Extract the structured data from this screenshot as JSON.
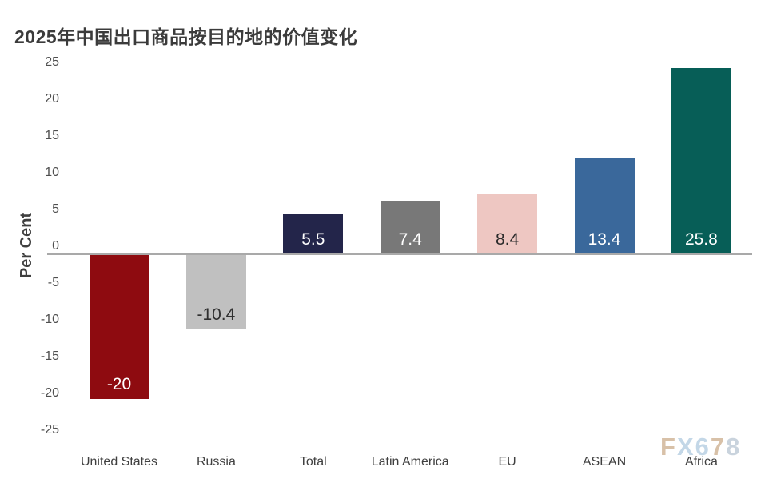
{
  "title": "2025年中国出口商品按目的地的价值变化",
  "watermark": {
    "text": "FX678",
    "letter_colors": [
      "#d8c1a8",
      "#c3d7e7",
      "#c3d7e7",
      "#d8c1a8",
      "#c9d3dd"
    ]
  },
  "chart_data": {
    "type": "bar",
    "title": "2025年中国出口商品按目的地的价值变化",
    "xlabel": "",
    "ylabel": "Per Cent",
    "categories": [
      "United States",
      "Russia",
      "Total",
      "Latin America",
      "EU",
      "ASEAN",
      "Africa"
    ],
    "values": [
      -20,
      -10.4,
      5.5,
      7.4,
      8.4,
      13.4,
      25.8
    ],
    "value_labels": [
      "-20",
      "-10.4",
      "5.5",
      "7.4",
      "8.4",
      "13.4",
      "25.8"
    ],
    "bar_colors": [
      "#8e0b10",
      "#c0c0c0",
      "#23254a",
      "#787878",
      "#eec7c2",
      "#3a689b",
      "#075e57"
    ],
    "value_label_colors": [
      "#ffffff",
      "#303030",
      "#ffffff",
      "#ffffff",
      "#2b2b2b",
      "#ffffff",
      "#ffffff"
    ],
    "ylim": [
      -25,
      25
    ],
    "yticks": [
      25,
      20,
      15,
      10,
      5,
      0,
      -5,
      -10,
      -15,
      -20,
      -25
    ],
    "grid": false,
    "legend": null,
    "zero_line_color": "#a9a9a9",
    "axis_text_color": "#4f4f4f",
    "category_text_color": "#3f3f3f"
  }
}
